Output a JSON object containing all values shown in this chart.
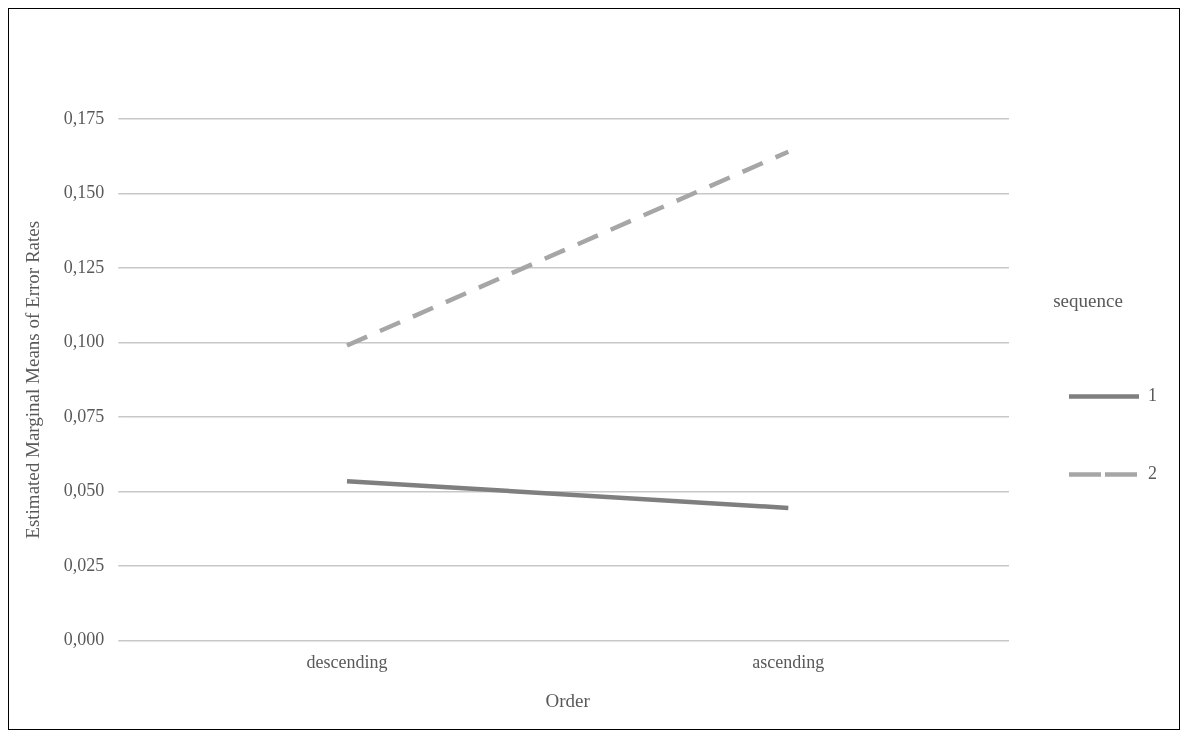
{
  "chart_data": {
    "type": "line",
    "xlabel": "Order",
    "ylabel": "Estimated Marginal Means of Error Rates",
    "legend_title": "sequence",
    "categories": [
      "descending",
      "ascending"
    ],
    "series": [
      {
        "name": "1",
        "color": "#7f7f7f",
        "values": [
          0.0535,
          0.0445
        ],
        "line_style": "solid"
      },
      {
        "name": "2",
        "color": "#a6a6a6",
        "values": [
          0.099,
          0.164
        ],
        "line_style": "dashed"
      }
    ],
    "ylim": [
      0,
      0.175
    ],
    "yticks": [
      {
        "value": 0,
        "label": "0,000"
      },
      {
        "value": 0.025,
        "label": "0,025"
      },
      {
        "value": 0.05,
        "label": "0,050"
      },
      {
        "value": 0.075,
        "label": "0,075"
      },
      {
        "value": 0.1,
        "label": "0,100"
      },
      {
        "value": 0.125,
        "label": "0,125"
      },
      {
        "value": 0.15,
        "label": "0,150"
      },
      {
        "value": 0.175,
        "label": "0,175"
      }
    ],
    "grid": "y",
    "legend": "right",
    "marker": "none"
  }
}
